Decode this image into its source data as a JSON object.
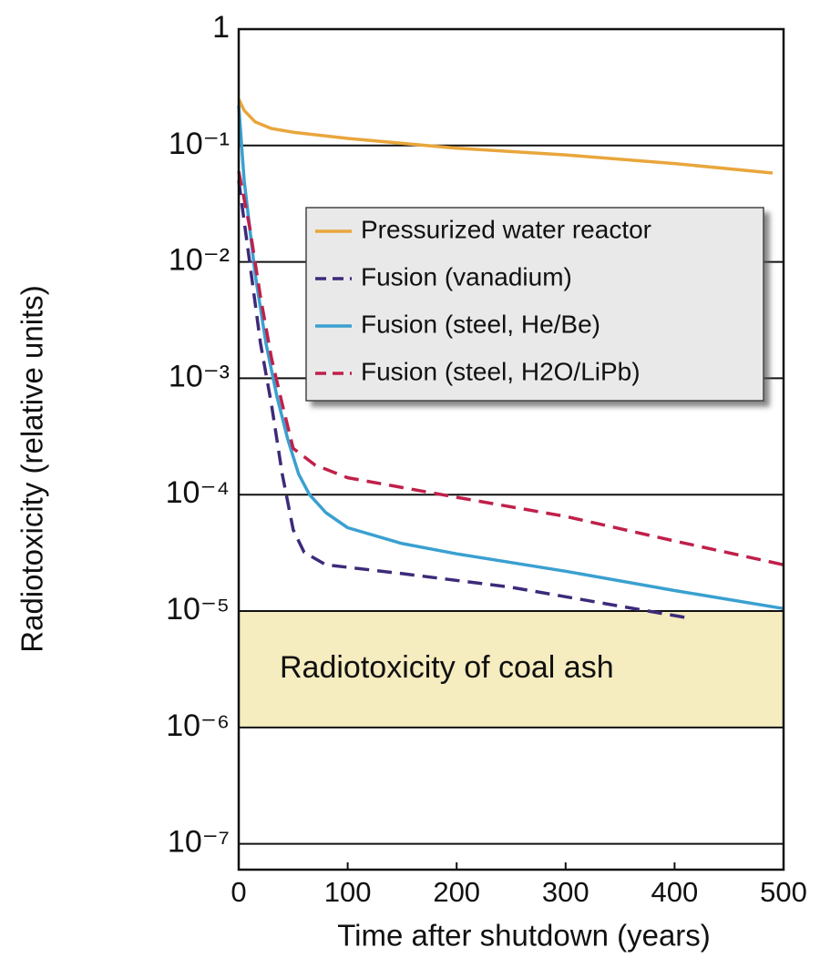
{
  "chart_data": {
    "type": "line",
    "x_label": "Time after shutdown (years)",
    "y_label": "Radiotoxicity (relative units)",
    "log_y": true,
    "grid": "y",
    "legend": "upper right",
    "xlim": [
      0,
      500
    ],
    "xticks": [
      0,
      100,
      200,
      300,
      400,
      500
    ],
    "ylim": [
      6e-08,
      1
    ],
    "yticks": [
      {
        "value": 1e-07,
        "label": "10⁻⁷"
      },
      {
        "value": 1e-06,
        "label": "10⁻⁶"
      },
      {
        "value": 1e-05,
        "label": "10⁻⁵"
      },
      {
        "value": 0.0001,
        "label": "10⁻⁴"
      },
      {
        "value": 0.001,
        "label": "10⁻³"
      },
      {
        "value": 0.01,
        "label": "10⁻²"
      },
      {
        "value": 0.1,
        "label": "10⁻¹"
      },
      1
    ],
    "annotations": [
      {
        "text": "Radiotoxicity of coal ash",
        "range": [
          1e-06,
          1e-05
        ],
        "color": "#f5ecbf"
      }
    ],
    "series": [
      {
        "name": "Pressurized water reactor",
        "color": "#e9a63c",
        "style": "solid",
        "x": [
          0,
          5,
          15,
          30,
          50,
          100,
          200,
          300,
          400,
          490
        ],
        "values": [
          0.25,
          0.2,
          0.16,
          0.14,
          0.13,
          0.115,
          0.095,
          0.083,
          0.07,
          0.058
        ]
      },
      {
        "name": "Fusion (vanadium)",
        "color": "#3d2a7a",
        "style": "dashed",
        "x": [
          0,
          10,
          20,
          30,
          40,
          50,
          60,
          80,
          150,
          250,
          350,
          410
        ],
        "values": [
          0.05,
          0.01,
          0.002,
          0.0006,
          0.00015,
          5e-05,
          3.2e-05,
          2.5e-05,
          2.1e-05,
          1.6e-05,
          1.1e-05,
          8.8e-06
        ]
      },
      {
        "name": "Fusion (steel, He/Be)",
        "color": "#3aa0d0",
        "style": "solid",
        "x": [
          0,
          5,
          15,
          25,
          35,
          45,
          55,
          65,
          80,
          100,
          150,
          200,
          300,
          400,
          500
        ],
        "values": [
          0.22,
          0.05,
          0.008,
          0.002,
          0.0007,
          0.0003,
          0.00015,
          0.0001,
          7e-05,
          5.2e-05,
          3.8e-05,
          3.1e-05,
          2.2e-05,
          1.5e-05,
          1.05e-05
        ]
      },
      {
        "name": "Fusion (steel, H2O/LiPb)",
        "color": "#c0204a",
        "style": "dashed",
        "x": [
          0,
          10,
          20,
          30,
          40,
          50,
          70,
          100,
          200,
          300,
          400,
          500
        ],
        "values": [
          0.06,
          0.02,
          0.005,
          0.0015,
          0.0006,
          0.00025,
          0.00018,
          0.00014,
          9.5e-05,
          6.5e-05,
          4e-05,
          2.5e-05
        ]
      }
    ]
  }
}
